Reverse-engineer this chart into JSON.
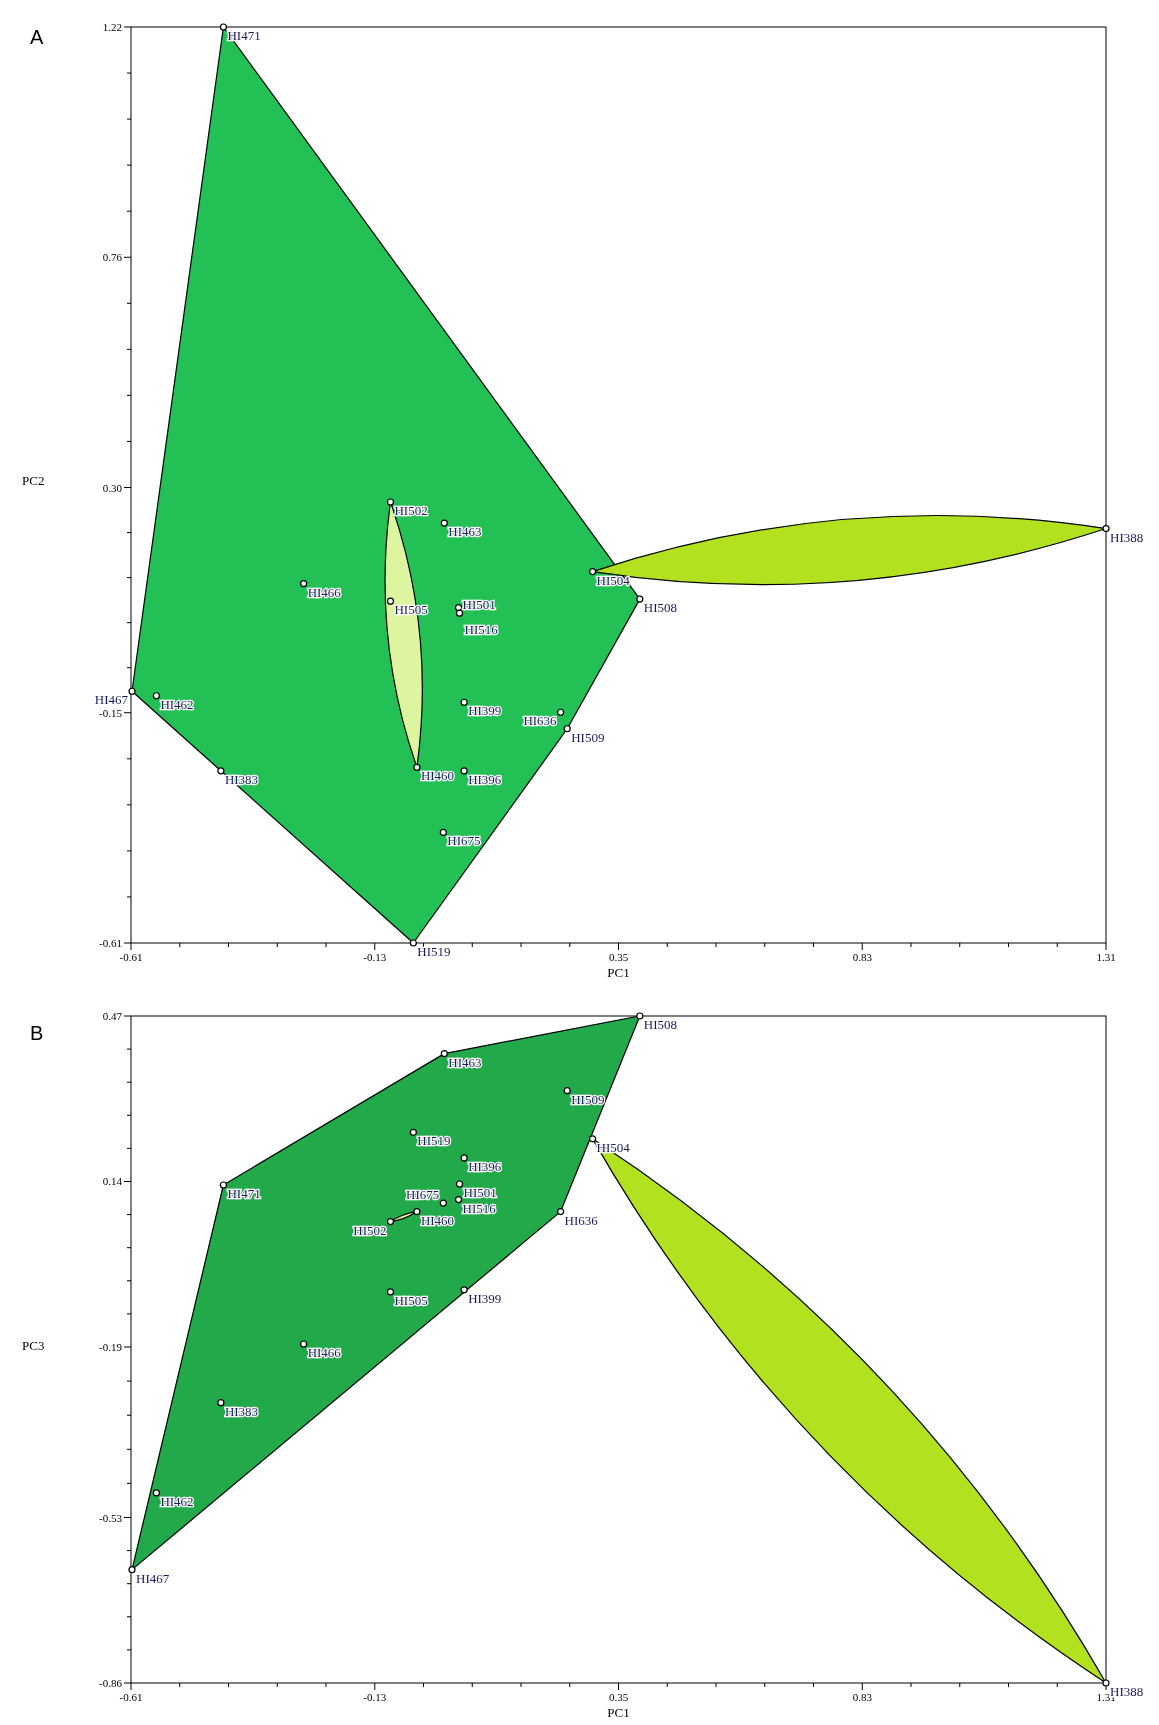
{
  "chart_data": [
    {
      "type": "scatter",
      "xlabel": "PC1",
      "ylabel": "PC2",
      "marker": "circle",
      "grid": false,
      "xlim": [
        -0.61,
        1.31
      ],
      "ylim": [
        -0.61,
        1.22
      ],
      "xticks": [
        -0.61,
        {
          "value": -0.514,
          "label": null
        },
        {
          "value": -0.418,
          "label": null
        },
        {
          "value": -0.322,
          "label": null
        },
        {
          "value": -0.226,
          "label": null
        },
        -0.13,
        {
          "value": -0.034,
          "label": null
        },
        {
          "value": 0.062,
          "label": null
        },
        {
          "value": 0.158,
          "label": null
        },
        {
          "value": 0.254,
          "label": null
        },
        0.35,
        {
          "value": 0.446,
          "label": null
        },
        {
          "value": 0.542,
          "label": null
        },
        {
          "value": 0.638,
          "label": null
        },
        {
          "value": 0.734,
          "label": null
        },
        0.83,
        {
          "value": 0.926,
          "label": null
        },
        {
          "value": 1.022,
          "label": null
        },
        {
          "value": 1.118,
          "label": null
        },
        {
          "value": 1.214,
          "label": null
        },
        1.31
      ],
      "yticks": [
        -0.61,
        {
          "value": -0.518,
          "label": null
        },
        {
          "value": -0.426,
          "label": null
        },
        {
          "value": -0.334,
          "label": null
        },
        {
          "value": -0.242,
          "label": null
        },
        -0.15,
        {
          "value": -0.06,
          "label": null
        },
        {
          "value": 0.03,
          "label": null
        },
        {
          "value": 0.12,
          "label": null
        },
        {
          "value": 0.21,
          "label": null
        },
        {
          "value": 0.3,
          "label": "0.30"
        },
        {
          "value": 0.392,
          "label": null
        },
        {
          "value": 0.484,
          "label": null
        },
        {
          "value": 0.576,
          "label": null
        },
        {
          "value": 0.668,
          "label": null
        },
        0.76,
        {
          "value": 0.852,
          "label": null
        },
        {
          "value": 0.944,
          "label": null
        },
        {
          "value": 1.036,
          "label": null
        },
        {
          "value": 1.128,
          "label": null
        },
        1.22
      ],
      "series": [
        {
          "color": "#ffffff",
          "x": [
            -0.428,
            0.007,
            -0.27,
            -0.099,
            0.035,
            0.037,
            0.392,
            -0.608,
            -0.56,
            0.046,
            0.236,
            0.249,
            -0.433,
            0.046,
            0.005,
            -0.054
          ],
          "values": [
            1.22,
            0.229,
            0.108,
            0.073,
            0.06,
            0.049,
            0.077,
            -0.107,
            -0.116,
            -0.129,
            -0.149,
            -0.182,
            -0.266,
            -0.266,
            -0.389,
            -0.61
          ]
        },
        {
          "color": "#ffffff",
          "x": [
            -0.099,
            -0.047
          ],
          "values": [
            0.271,
            -0.259
          ]
        },
        {
          "color": "#ffffff",
          "x": [
            0.299,
            1.31
          ],
          "values": [
            0.132,
            0.218
          ]
        }
      ],
      "annotations": [
        "A",
        {
          "text": "HI471",
          "x": -0.428,
          "y": 1.22
        },
        {
          "text": "HI502",
          "x": -0.099,
          "y": 0.271
        },
        {
          "text": "HI463",
          "x": 0.007,
          "y": 0.229
        },
        {
          "text": "HI466",
          "x": -0.27,
          "y": 0.108
        },
        {
          "text": "HI505",
          "x": -0.099,
          "y": 0.073
        },
        {
          "text": "HI516",
          "x": 0.035,
          "y": 0.06
        },
        {
          "text": "HI501",
          "x": 0.037,
          "y": 0.049
        },
        {
          "text": "HI504",
          "x": 0.299,
          "y": 0.132
        },
        {
          "text": "HI508",
          "x": 0.392,
          "y": 0.077
        },
        {
          "text": "HI388",
          "x": 1.31,
          "y": 0.218
        },
        {
          "text": "HI467",
          "x": -0.608,
          "y": -0.107
        },
        {
          "text": "HI462",
          "x": -0.56,
          "y": -0.116
        },
        {
          "text": "HI399",
          "x": 0.046,
          "y": -0.129
        },
        {
          "text": "HI636",
          "x": 0.236,
          "y": -0.149
        },
        {
          "text": "HI509",
          "x": 0.249,
          "y": -0.182
        },
        {
          "text": "HI383",
          "x": -0.433,
          "y": -0.266
        },
        {
          "text": "HI460",
          "x": -0.047,
          "y": -0.259
        },
        {
          "text": "HI396",
          "x": 0.046,
          "y": -0.266
        },
        {
          "text": "HI675",
          "x": 0.005,
          "y": -0.389
        },
        {
          "text": "HI519",
          "x": -0.054,
          "y": -0.61
        }
      ]
    },
    {
      "type": "scatter",
      "xlabel": "PC1",
      "ylabel": "PC3",
      "marker": "circle",
      "grid": false,
      "xlim": [
        -0.61,
        1.31
      ],
      "ylim": [
        -0.86,
        0.47
      ],
      "xticks": [
        -0.61,
        {
          "value": -0.514,
          "label": null
        },
        {
          "value": -0.418,
          "label": null
        },
        {
          "value": -0.322,
          "label": null
        },
        {
          "value": -0.226,
          "label": null
        },
        -0.13,
        {
          "value": -0.034,
          "label": null
        },
        {
          "value": 0.062,
          "label": null
        },
        {
          "value": 0.158,
          "label": null
        },
        {
          "value": 0.254,
          "label": null
        },
        0.35,
        {
          "value": 0.446,
          "label": null
        },
        {
          "value": 0.542,
          "label": null
        },
        {
          "value": 0.638,
          "label": null
        },
        {
          "value": 0.734,
          "label": null
        },
        0.83,
        {
          "value": 0.926,
          "label": null
        },
        {
          "value": 1.022,
          "label": null
        },
        {
          "value": 1.118,
          "label": null
        },
        {
          "value": 1.214,
          "label": null
        },
        1.31
      ],
      "yticks": [
        -0.86,
        {
          "value": -0.794,
          "label": null
        },
        {
          "value": -0.728,
          "label": null
        },
        {
          "value": -0.662,
          "label": null
        },
        {
          "value": -0.596,
          "label": null
        },
        -0.53,
        {
          "value": -0.462,
          "label": null
        },
        {
          "value": -0.394,
          "label": null
        },
        {
          "value": -0.326,
          "label": null
        },
        {
          "value": -0.258,
          "label": null
        },
        -0.19,
        {
          "value": -0.124,
          "label": null
        },
        {
          "value": -0.058,
          "label": null
        },
        {
          "value": 0.008,
          "label": null
        },
        {
          "value": 0.074,
          "label": null
        },
        0.14,
        {
          "value": 0.206,
          "label": null
        },
        {
          "value": 0.272,
          "label": null
        },
        {
          "value": 0.338,
          "label": null
        },
        {
          "value": 0.404,
          "label": null
        },
        0.47
      ],
      "series": [
        {
          "color": "#ffffff",
          "x": [
            0.392,
            0.007,
            0.249,
            -0.054,
            0.046,
            -0.428,
            0.037,
            0.035,
            0.005,
            0.236,
            -0.099,
            0.046,
            -0.27,
            -0.433,
            -0.56,
            -0.608
          ],
          "values": [
            0.47,
            0.395,
            0.321,
            0.238,
            0.187,
            0.133,
            0.135,
            0.104,
            0.097,
            0.08,
            -0.08,
            -0.076,
            -0.184,
            -0.301,
            -0.481,
            -0.634
          ]
        },
        {
          "color": "#ffffff",
          "x": [
            -0.099,
            -0.047
          ],
          "values": [
            0.06,
            0.08
          ]
        },
        {
          "color": "#ffffff",
          "x": [
            0.299,
            1.31
          ],
          "values": [
            0.225,
            -0.86
          ]
        }
      ],
      "annotations": [
        "B",
        {
          "text": "HI508",
          "x": 0.392,
          "y": 0.47
        },
        {
          "text": "HI463",
          "x": 0.007,
          "y": 0.395
        },
        {
          "text": "HI509",
          "x": 0.249,
          "y": 0.321
        },
        {
          "text": "HI519",
          "x": -0.054,
          "y": 0.238
        },
        {
          "text": "HI504",
          "x": 0.299,
          "y": 0.225
        },
        {
          "text": "HI396",
          "x": 0.046,
          "y": 0.187
        },
        {
          "text": "HI471",
          "x": -0.428,
          "y": 0.133
        },
        {
          "text": "HI501",
          "x": 0.037,
          "y": 0.135
        },
        {
          "text": "HI516",
          "x": 0.035,
          "y": 0.104
        },
        {
          "text": "HI675",
          "x": 0.005,
          "y": 0.097
        },
        {
          "text": "HI460",
          "x": -0.047,
          "y": 0.08
        },
        {
          "text": "HI502",
          "x": -0.099,
          "y": 0.06
        },
        {
          "text": "HI636",
          "x": 0.236,
          "y": 0.08
        },
        {
          "text": "HI505",
          "x": -0.099,
          "y": -0.08
        },
        {
          "text": "HI399",
          "x": 0.046,
          "y": -0.076
        },
        {
          "text": "HI466",
          "x": -0.27,
          "y": -0.184
        },
        {
          "text": "HI383",
          "x": -0.433,
          "y": -0.301
        },
        {
          "text": "HI462",
          "x": -0.56,
          "y": -0.481
        },
        {
          "text": "HI467",
          "x": -0.608,
          "y": -0.634
        },
        {
          "text": "HI388",
          "x": 1.31,
          "y": -0.86
        }
      ]
    }
  ]
}
